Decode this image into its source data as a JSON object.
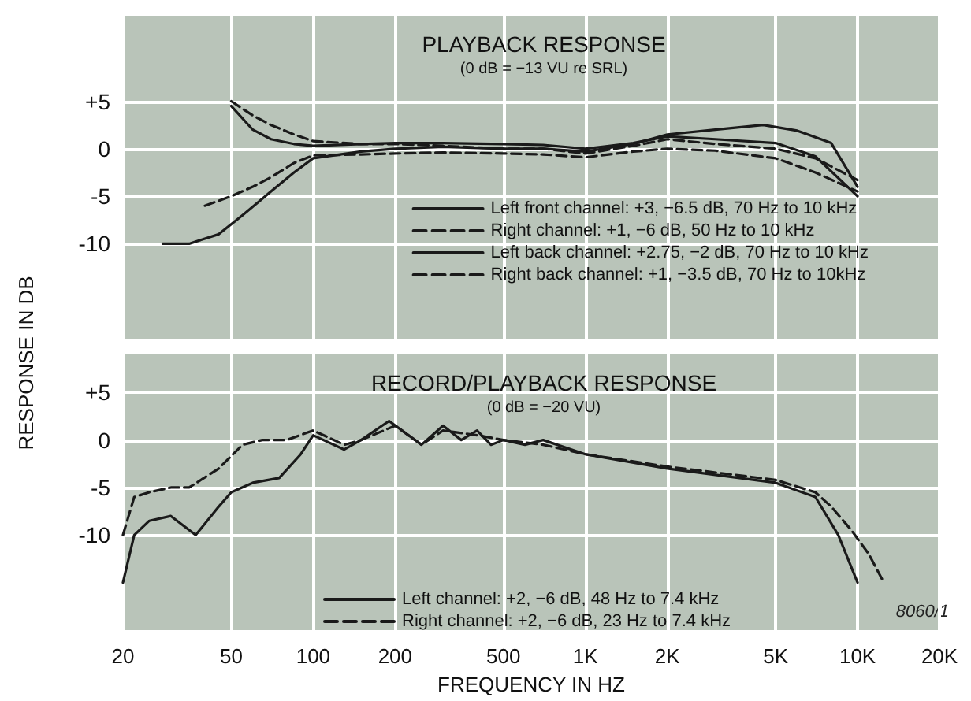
{
  "chart_data": [
    {
      "type": "line",
      "title": "PLAYBACK RESPONSE",
      "subtitle": "(0 dB = −13 VU re SRL)",
      "ylabel": "RESPONSE IN DB",
      "log": "x",
      "xlim": [
        20,
        20000
      ],
      "xticks": [
        20,
        50,
        100,
        200,
        500,
        1000,
        2000,
        5000,
        10000,
        20000
      ],
      "ylim": [
        -20,
        14
      ],
      "yticks": [
        {
          "value": 5,
          "label": "+5"
        },
        0,
        -5,
        -10
      ],
      "tick_labels": "y",
      "grid": true,
      "legend": "bottom right",
      "marker": "none",
      "series": [
        {
          "name": "Left front channel: +3, −6.5 dB, 70 Hz to 10 kHz",
          "color": "#1a1a1a",
          "line_style": "solid",
          "x": [
            28,
            35,
            45,
            55,
            70,
            85,
            100,
            150,
            200,
            300,
            500,
            700,
            1000,
            1500,
            2000,
            3000,
            4500,
            6000,
            8000,
            10000
          ],
          "values": [
            -10,
            -10,
            -9,
            -7,
            -4.5,
            -2.5,
            -1,
            -0.3,
            0,
            0.2,
            0,
            0,
            -0.3,
            0.5,
            1.5,
            2,
            2.5,
            1.9,
            0.6,
            -4
          ]
        },
        {
          "name": "Right channel: +1, −6 dB, 50 Hz to 10 kHz",
          "color": "#1a1a1a",
          "line_style": "dashed",
          "x": [
            50,
            60,
            70,
            85,
            100,
            150,
            200,
            300,
            500,
            700,
            1000,
            1500,
            2000,
            3000,
            5000,
            7000,
            10000
          ],
          "values": [
            5,
            3.5,
            2.5,
            1.5,
            0.8,
            0.5,
            0.5,
            0.3,
            0,
            0,
            -0.5,
            0.3,
            1,
            0.5,
            0,
            -1,
            -3.3
          ]
        },
        {
          "name": "Left back channel: +2.75, −2 dB, 70 Hz to 10 kHz",
          "color": "#1a1a1a",
          "line_style": "solid",
          "x": [
            50,
            60,
            70,
            85,
            100,
            150,
            200,
            300,
            500,
            700,
            1000,
            1500,
            2000,
            3000,
            5000,
            7000,
            10000
          ],
          "values": [
            4.5,
            2,
            1,
            0.5,
            0.3,
            0.5,
            0.6,
            0.6,
            0.5,
            0.4,
            0,
            0.6,
            1.3,
            1,
            0.6,
            -0.8,
            -5
          ]
        },
        {
          "name": "Right back channel: +1, −3.5 dB, 70 Hz to 10kHz",
          "color": "#1a1a1a",
          "line_style": "dashed",
          "x": [
            40,
            50,
            60,
            70,
            85,
            100,
            150,
            200,
            300,
            500,
            700,
            1000,
            1500,
            2000,
            3000,
            5000,
            7000,
            10000
          ],
          "values": [
            -6,
            -5,
            -4,
            -3,
            -1.5,
            -0.7,
            -0.6,
            -0.5,
            -0.4,
            -0.5,
            -0.6,
            -0.9,
            -0.3,
            0,
            -0.2,
            -1,
            -2.5,
            -4.5
          ]
        }
      ]
    },
    {
      "type": "line",
      "title": "RECORD/PLAYBACK RESPONSE",
      "subtitle": "(0 dB = −20 VU)",
      "xlabel": "FREQUENCY IN HZ",
      "log": "x",
      "xlim": [
        20,
        20000
      ],
      "xticks": [
        20,
        50,
        100,
        200,
        500,
        {
          "value": 1000,
          "label": "1K"
        },
        {
          "value": 2000,
          "label": "2K"
        },
        {
          "value": 5000,
          "label": "5K"
        },
        {
          "value": 10000,
          "label": "10K"
        },
        {
          "value": 20000,
          "label": "20K"
        }
      ],
      "ylim": [
        -20,
        9
      ],
      "yticks": [
        {
          "value": 5,
          "label": "+5"
        },
        0,
        -5,
        -10
      ],
      "grid": true,
      "legend": "bottom",
      "marker": "none",
      "annotations": [
        "8060/1"
      ],
      "series": [
        {
          "name": "Left channel: +2, −6 dB, 48 Hz to 7.4 kHz",
          "color": "#1a1a1a",
          "line_style": "solid",
          "x": [
            20,
            22,
            25,
            30,
            37,
            45,
            50,
            60,
            75,
            90,
            100,
            130,
            150,
            190,
            250,
            300,
            350,
            400,
            450,
            500,
            600,
            700,
            1000,
            2000,
            5000,
            7000,
            8500,
            10000
          ],
          "values": [
            -15,
            -10,
            -8.5,
            -8,
            -10,
            -7,
            -5.5,
            -4.5,
            -4,
            -1.5,
            0.5,
            -1,
            0,
            2,
            -0.5,
            1.5,
            0,
            1,
            -0.5,
            0,
            -0.5,
            0,
            -1.5,
            -3,
            -4.5,
            -6,
            -10,
            -15
          ]
        },
        {
          "name": "Right channel: +2, −6 dB, 23 Hz to 7.4 kHz",
          "color": "#1a1a1a",
          "line_style": "dashed",
          "x": [
            20,
            22,
            25,
            30,
            35,
            45,
            55,
            65,
            80,
            100,
            130,
            150,
            200,
            250,
            300,
            400,
            500,
            700,
            1000,
            2000,
            5000,
            7000,
            8000,
            9500,
            11000,
            12500
          ],
          "values": [
            -10,
            -6,
            -5.5,
            -5,
            -5,
            -3,
            -0.5,
            0,
            0,
            1,
            -0.5,
            0,
            1.5,
            -0.5,
            1,
            0.5,
            0,
            -0.5,
            -1.5,
            -2.8,
            -4.2,
            -5.5,
            -7,
            -9.5,
            -12,
            -15
          ]
        }
      ]
    }
  ]
}
